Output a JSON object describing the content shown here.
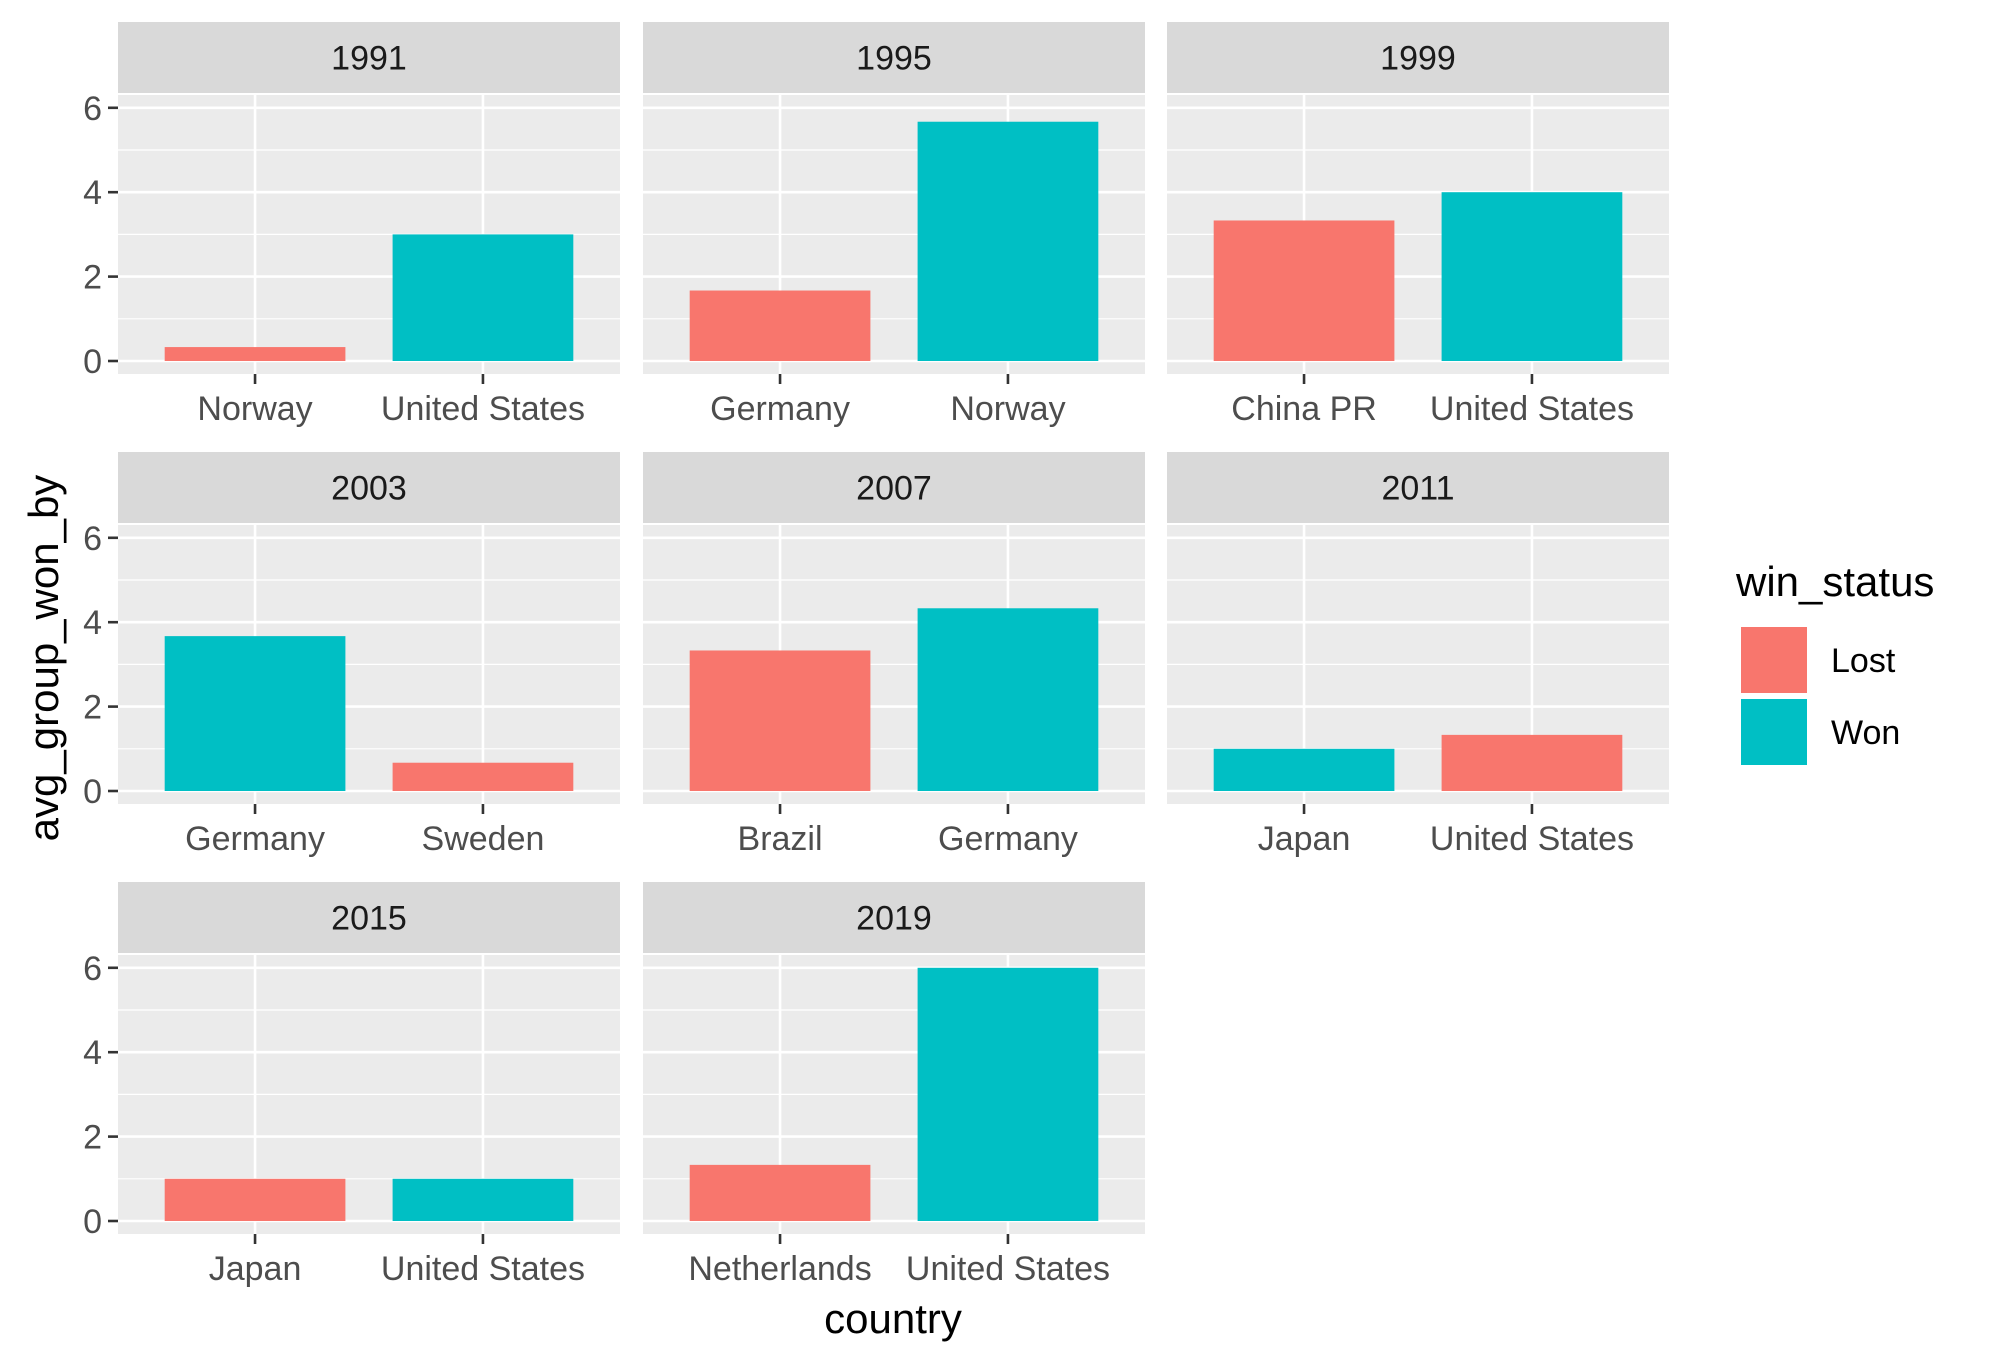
{
  "chart_data": {
    "type": "bar",
    "xlabel": "country",
    "ylabel": "avg_group_won_by",
    "ylim": [
      0,
      7.8
    ],
    "yticks": [
      0,
      2,
      4,
      6
    ],
    "grid": true,
    "legend": {
      "title": "win_status",
      "placement": "right",
      "entries": [
        {
          "name": "Lost",
          "color": "#F8766D"
        },
        {
          "name": "Won",
          "color": "#00BFC4"
        }
      ]
    },
    "facets": [
      {
        "label": "1991",
        "bars": [
          {
            "country": "Norway",
            "value": 0.33,
            "status": "Lost"
          },
          {
            "country": "United States",
            "value": 3.0,
            "status": "Won"
          }
        ]
      },
      {
        "label": "1995",
        "bars": [
          {
            "country": "Germany",
            "value": 1.67,
            "status": "Lost"
          },
          {
            "country": "Norway",
            "value": 5.67,
            "status": "Won"
          }
        ]
      },
      {
        "label": "1999",
        "bars": [
          {
            "country": "China PR",
            "value": 3.33,
            "status": "Lost"
          },
          {
            "country": "United States",
            "value": 4.0,
            "status": "Won"
          }
        ]
      },
      {
        "label": "2003",
        "bars": [
          {
            "country": "Germany",
            "value": 3.67,
            "status": "Won"
          },
          {
            "country": "Sweden",
            "value": 0.67,
            "status": "Lost"
          }
        ]
      },
      {
        "label": "2007",
        "bars": [
          {
            "country": "Brazil",
            "value": 3.33,
            "status": "Lost"
          },
          {
            "country": "Germany",
            "value": 4.33,
            "status": "Won"
          }
        ]
      },
      {
        "label": "2011",
        "bars": [
          {
            "country": "Japan",
            "value": 1.0,
            "status": "Won"
          },
          {
            "country": "United States",
            "value": 1.33,
            "status": "Lost"
          }
        ]
      },
      {
        "label": "2015",
        "bars": [
          {
            "country": "Japan",
            "value": 1.0,
            "status": "Lost"
          },
          {
            "country": "United States",
            "value": 1.0,
            "status": "Won"
          }
        ]
      },
      {
        "label": "2019",
        "bars": [
          {
            "country": "Netherlands",
            "value": 1.33,
            "status": "Lost"
          },
          {
            "country": "United States",
            "value": 6.0,
            "status": "Won"
          }
        ]
      }
    ]
  },
  "colors": {
    "panel_background": "#EBEBEB",
    "strip_background": "#D9D9D9",
    "grid": "#FFFFFF"
  }
}
